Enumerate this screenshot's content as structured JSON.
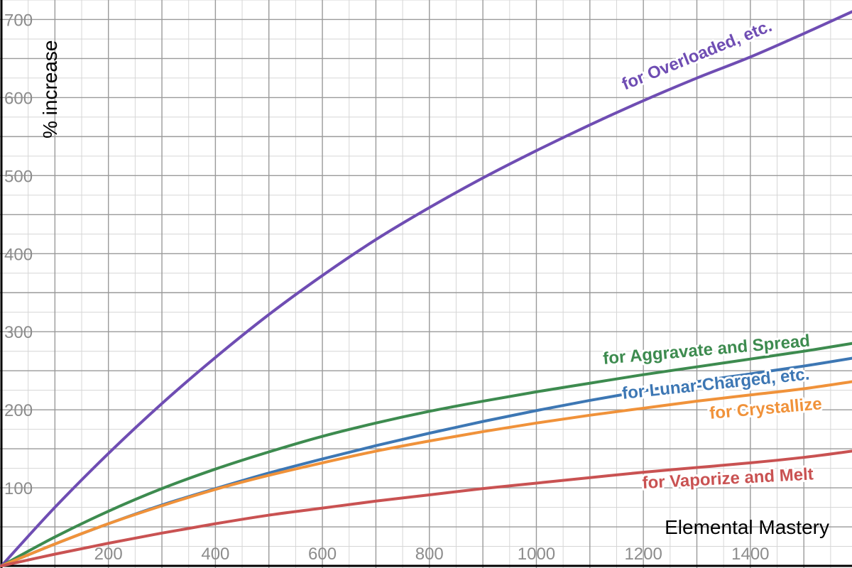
{
  "chart_data": {
    "type": "line",
    "xlabel": "Elemental Mastery",
    "ylabel": "% increase",
    "xlim": [
      0,
      1590
    ],
    "ylim": [
      0,
      725
    ],
    "x_ticks": [
      200,
      400,
      600,
      800,
      1000,
      1200,
      1400
    ],
    "y_ticks": [
      100,
      200,
      300,
      400,
      500,
      600,
      700
    ],
    "grid": true,
    "minor_grid_step_x": 50,
    "minor_grid_step_y": 25,
    "x": [
      0,
      100,
      200,
      300,
      400,
      500,
      600,
      700,
      800,
      900,
      1000,
      1100,
      1200,
      1300,
      1400,
      1500,
      1590
    ],
    "series": [
      {
        "name": "for Overloaded, etc.",
        "color": "#6f4db3",
        "values": [
          0,
          75,
          144,
          208,
          267,
          322,
          372,
          418,
          459,
          497,
          532,
          565,
          596,
          625,
          652,
          682,
          710
        ]
      },
      {
        "name": "for Aggravate and Spread",
        "color": "#3d8b4f",
        "values": [
          0,
          37,
          70,
          99,
          124,
          146,
          166,
          183,
          198,
          211,
          223,
          234,
          245,
          255,
          265,
          275,
          285
        ]
      },
      {
        "name": "for Lunar-Charged, etc.",
        "color": "#3d77b4",
        "values": [
          0,
          28,
          54,
          78,
          99,
          119,
          137,
          154,
          170,
          185,
          199,
          212,
          224,
          236,
          246,
          256,
          266
        ]
      },
      {
        "name": "for Crystallize",
        "color": "#f0923a",
        "values": [
          0,
          28,
          54,
          77,
          98,
          116,
          132,
          147,
          160,
          172,
          183,
          193,
          202,
          211,
          219,
          227,
          236
        ]
      },
      {
        "name": "for Vaporize and Melt",
        "color": "#c95252",
        "values": [
          0,
          15,
          29,
          42,
          54,
          65,
          74,
          83,
          91,
          99,
          106,
          113,
          120,
          126,
          132,
          139,
          147
        ]
      }
    ]
  }
}
